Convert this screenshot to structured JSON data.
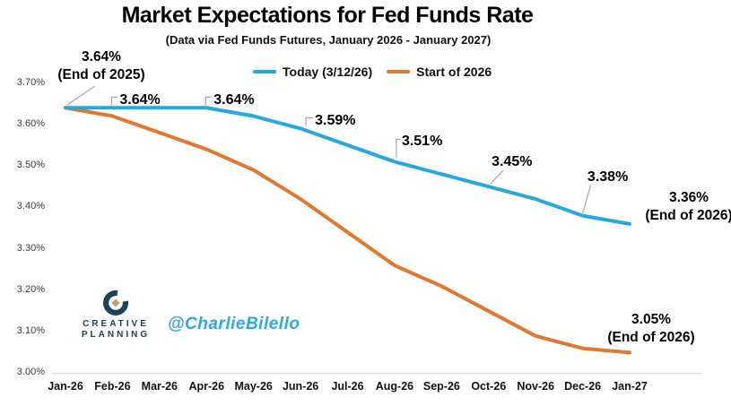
{
  "title": "Market Expectations for Fed Funds Rate",
  "subtitle": "(Data via Fed Funds Futures, January 2026 - January 2027)",
  "chart_data": {
    "type": "line",
    "x": [
      "Jan-26",
      "Feb-26",
      "Mar-26",
      "Apr-26",
      "May-26",
      "Jun-26",
      "Jul-26",
      "Aug-26",
      "Sep-26",
      "Oct-26",
      "Nov-26",
      "Dec-26",
      "Jan-27"
    ],
    "series": [
      {
        "name": "Today (3/12/26)",
        "color": "#27a9e0",
        "values": [
          3.64,
          3.64,
          3.64,
          3.64,
          3.62,
          3.59,
          3.55,
          3.51,
          3.48,
          3.45,
          3.42,
          3.38,
          3.36
        ]
      },
      {
        "name": "Start of 2026",
        "color": "#e2772e",
        "values": [
          3.64,
          3.62,
          3.58,
          3.54,
          3.49,
          3.42,
          3.34,
          3.26,
          3.21,
          3.15,
          3.09,
          3.06,
          3.05
        ]
      }
    ],
    "ylim": [
      3.0,
      3.7
    ],
    "y_tick_labels": [
      "3.70%",
      "3.60%",
      "3.50%",
      "3.40%",
      "3.30%",
      "3.20%",
      "3.10%",
      "3.00%"
    ],
    "grid": false,
    "legend_position": "top-center",
    "annotations": {
      "callouts": [
        {
          "series": 0,
          "point": 0,
          "line1": "3.64%",
          "line2": "(End of 2025)"
        },
        {
          "series": 0,
          "point": 12,
          "line1": "3.36%",
          "line2": "(End of 2026)"
        },
        {
          "series": 1,
          "point": 12,
          "line1": "3.05%",
          "line2": "(End of 2026)"
        }
      ],
      "point_labels": [
        {
          "series": 0,
          "point": 1,
          "text": "3.64%"
        },
        {
          "series": 0,
          "point": 3,
          "text": "3.64%"
        },
        {
          "series": 0,
          "point": 5,
          "text": "3.59%"
        },
        {
          "series": 0,
          "point": 7,
          "text": "3.51%"
        },
        {
          "series": 0,
          "point": 9,
          "text": "3.45%"
        },
        {
          "series": 0,
          "point": 11,
          "text": "3.38%"
        }
      ]
    }
  },
  "branding": {
    "logo_line1": "CREATIVE",
    "logo_line2": "PLANNING",
    "handle": "@CharlieBilello"
  },
  "colors": {
    "leader_gray": "#a6a6a6",
    "axis_line": "#d9d9d9",
    "logo_navy": "#1d4356",
    "logo_gold": "#c2a36b",
    "handle_blue": "#29abe2"
  }
}
